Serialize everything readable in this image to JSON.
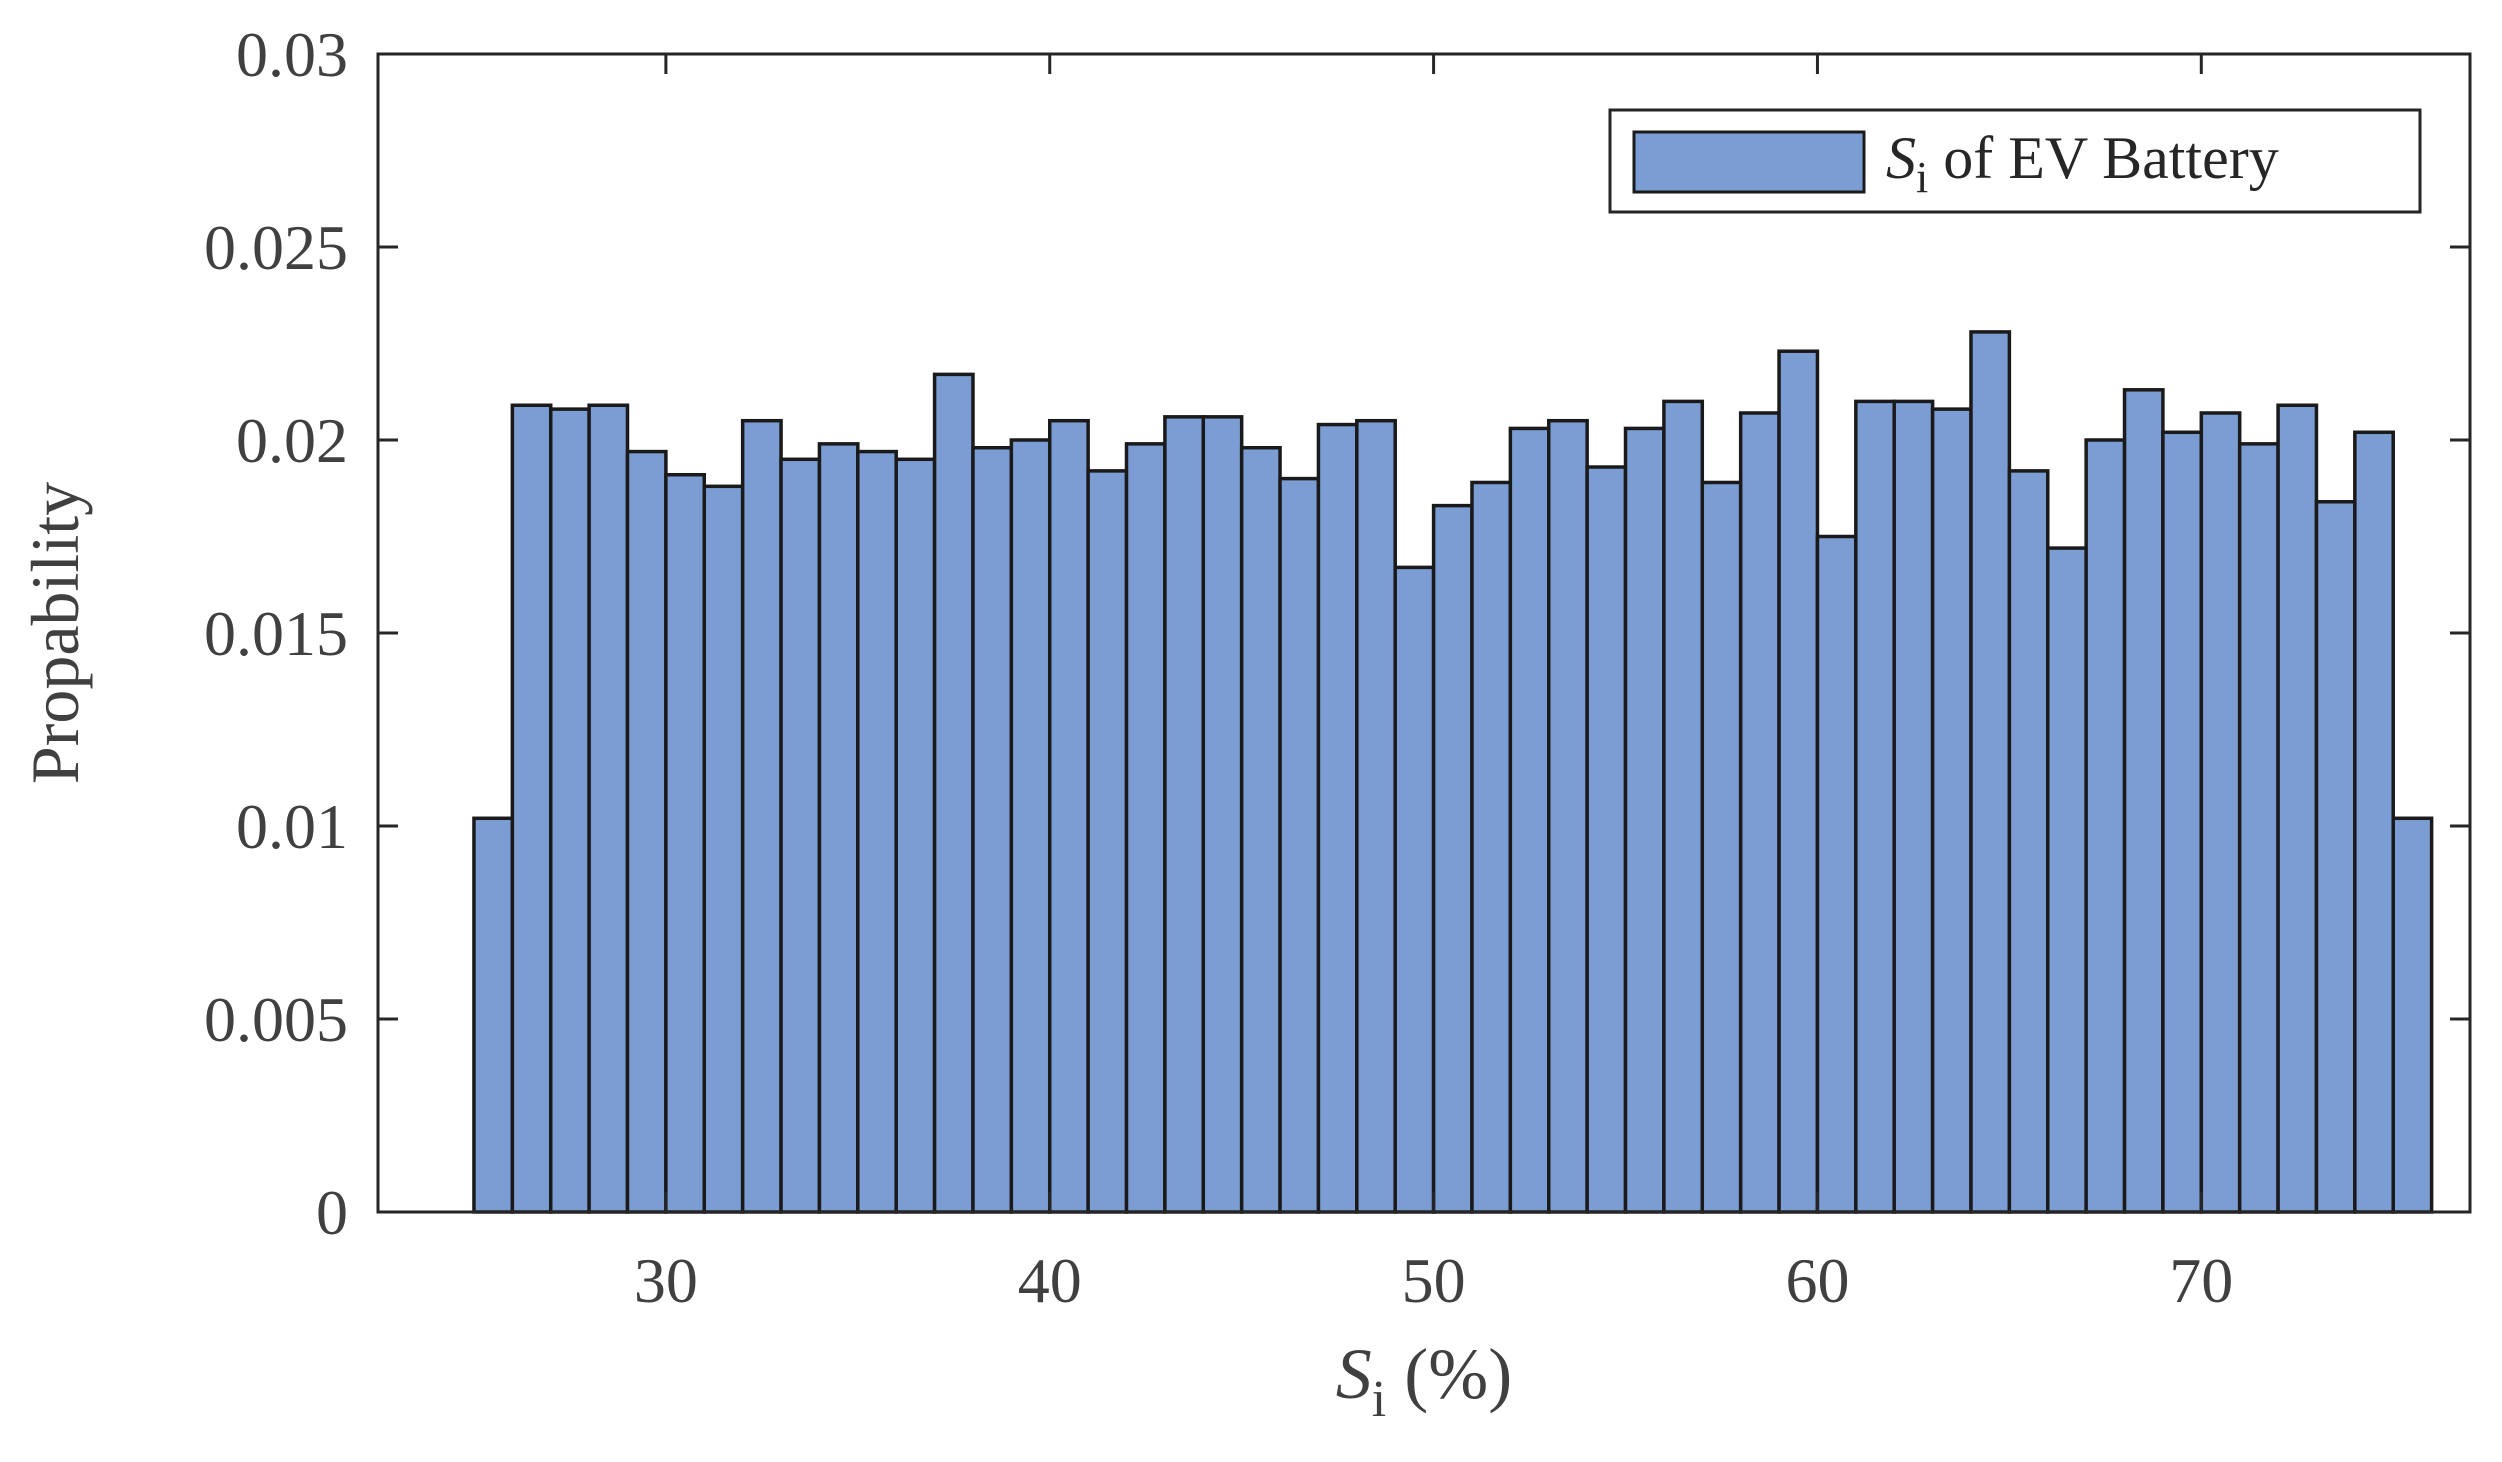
{
  "chart_data": {
    "type": "bar",
    "bin_width": 1,
    "bin_starts": [
      25,
      26,
      27,
      28,
      29,
      30,
      31,
      32,
      33,
      34,
      35,
      36,
      37,
      38,
      39,
      40,
      41,
      42,
      43,
      44,
      45,
      46,
      47,
      48,
      49,
      50,
      51,
      52,
      53,
      54,
      55,
      56,
      57,
      58,
      59,
      60,
      61,
      62,
      63,
      64,
      65,
      66,
      67,
      68,
      69,
      70,
      71,
      72,
      73,
      74,
      75
    ],
    "values": [
      0.0102,
      0.0209,
      0.0208,
      0.0209,
      0.0197,
      0.0191,
      0.0188,
      0.0205,
      0.0195,
      0.0199,
      0.0197,
      0.0195,
      0.0217,
      0.0198,
      0.02,
      0.0205,
      0.0192,
      0.0199,
      0.0206,
      0.0206,
      0.0198,
      0.019,
      0.0204,
      0.0205,
      0.0167,
      0.0183,
      0.0189,
      0.0203,
      0.0205,
      0.0193,
      0.0203,
      0.021,
      0.0189,
      0.0207,
      0.0223,
      0.0175,
      0.021,
      0.021,
      0.0208,
      0.0228,
      0.0192,
      0.0172,
      0.02,
      0.0213,
      0.0202,
      0.0207,
      0.0199,
      0.0209,
      0.0184,
      0.0202,
      0.0102
    ],
    "xlim": [
      22.5,
      77
    ],
    "ylim": [
      0,
      0.03
    ],
    "xticks": [
      30,
      40,
      50,
      60,
      70
    ],
    "xtick_labels": [
      "30",
      "40",
      "50",
      "60",
      "70"
    ],
    "yticks": [
      0,
      0.005,
      0.01,
      0.015,
      0.02,
      0.025,
      0.03
    ],
    "ytick_labels": [
      "0",
      "0.005",
      "0.01",
      "0.015",
      "0.02",
      "0.025",
      "0.03"
    ],
    "xlabel": {
      "symbol": "S",
      "subscript": "i",
      "suffix": " (%)"
    },
    "ylabel": "Propability",
    "legend": {
      "position": "top-right",
      "symbol": "S",
      "subscript": "i",
      "suffix": " of EV Battery"
    },
    "bar_color": "#7b9dd3",
    "edge_color": "#1a1a1a"
  }
}
